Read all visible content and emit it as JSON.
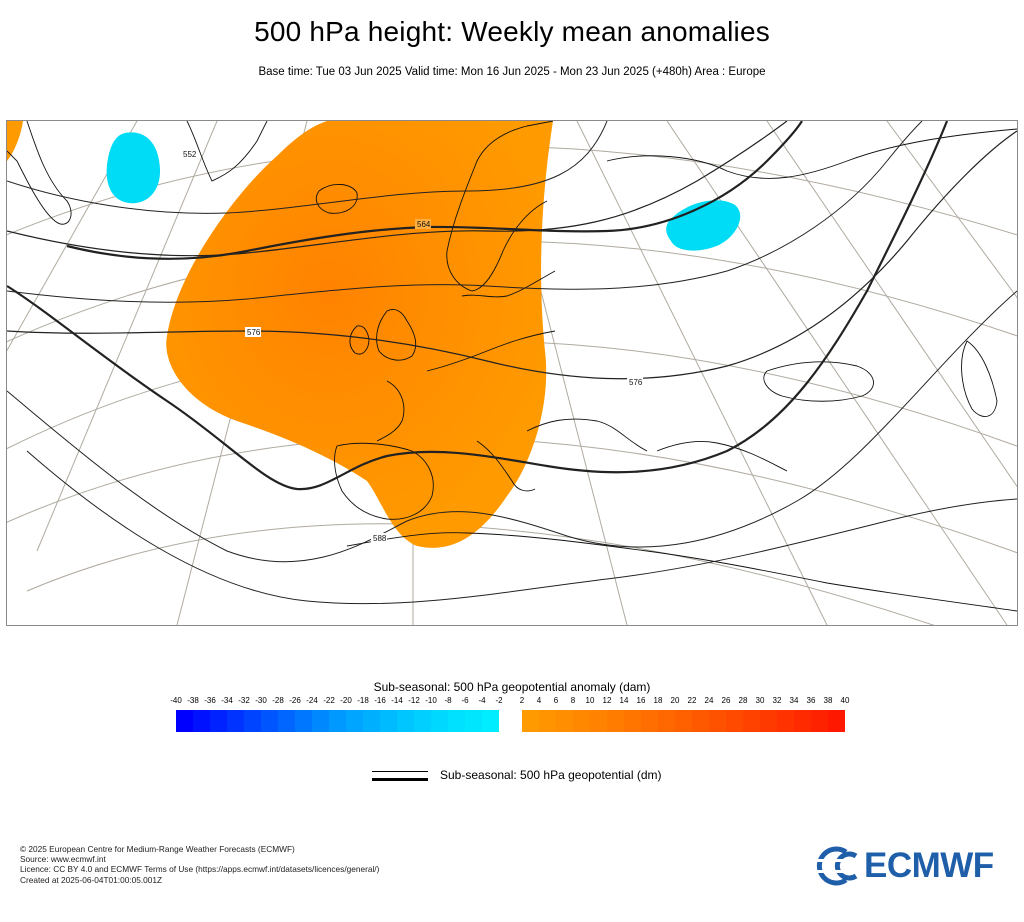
{
  "header": {
    "title": "500 hPa height: Weekly mean anomalies",
    "subtitle": "Base time: Tue 03 Jun 2025 Valid time: Mon 16 Jun 2025 - Mon 23 Jun 2025 (+480h) Area : Europe"
  },
  "map": {
    "region": "Europe",
    "contour_labels": [
      "552",
      "564",
      "576",
      "576",
      "588"
    ],
    "anomaly_regions": [
      {
        "sign": "positive",
        "location": "North Atlantic / British Isles / Iberia"
      },
      {
        "sign": "negative",
        "location": "Southern Greenland"
      },
      {
        "sign": "negative",
        "location": "Northwest Russia"
      }
    ]
  },
  "legend": {
    "anomaly_title": "Sub-seasonal: 500 hPa geopotential anomaly (dam)",
    "negative_ticks": [
      "-40",
      "-38",
      "-36",
      "-34",
      "-32",
      "-30",
      "-28",
      "-26",
      "-24",
      "-22",
      "-20",
      "-18",
      "-16",
      "-14",
      "-12",
      "-10",
      "-8",
      "-6",
      "-4",
      "-2"
    ],
    "positive_ticks": [
      "2",
      "4",
      "6",
      "8",
      "10",
      "12",
      "14",
      "16",
      "18",
      "20",
      "22",
      "24",
      "26",
      "28",
      "30",
      "32",
      "34",
      "36",
      "38",
      "40"
    ],
    "negative_colors": [
      "#0000ff",
      "#0011ff",
      "#0022ff",
      "#0033ff",
      "#0044ff",
      "#0055ff",
      "#0066ff",
      "#0077ff",
      "#0088ff",
      "#0099ff",
      "#00a5ff",
      "#00b0ff",
      "#00bbff",
      "#00c6ff",
      "#00cfff",
      "#00d8ff",
      "#00e0ff",
      "#00e6ff",
      "#00ecff"
    ],
    "positive_colors": [
      "#ff9a00",
      "#ff9400",
      "#ff8e00",
      "#ff8800",
      "#ff8200",
      "#ff7c00",
      "#ff7500",
      "#ff6e00",
      "#ff6700",
      "#ff6000",
      "#ff5900",
      "#ff5200",
      "#ff4a00",
      "#ff4200",
      "#ff3a00",
      "#ff3200",
      "#ff2a00",
      "#ff2200",
      "#ff1800"
    ],
    "line_label": "Sub-seasonal: 500 hPa geopotential (dm)"
  },
  "footer": {
    "copyright": "© 2025 European Centre for Medium-Range Weather Forecasts (ECMWF)",
    "source": "Source: www.ecmwf.int",
    "licence": "Licence: CC BY 4.0 and ECMWF Terms of Use (https://apps.ecmwf.int/datasets/licences/general/)",
    "created": "Created at 2025-06-04T01:00:05.001Z"
  },
  "logo": {
    "text": "ECMWF",
    "color": "#1f5ea8"
  }
}
